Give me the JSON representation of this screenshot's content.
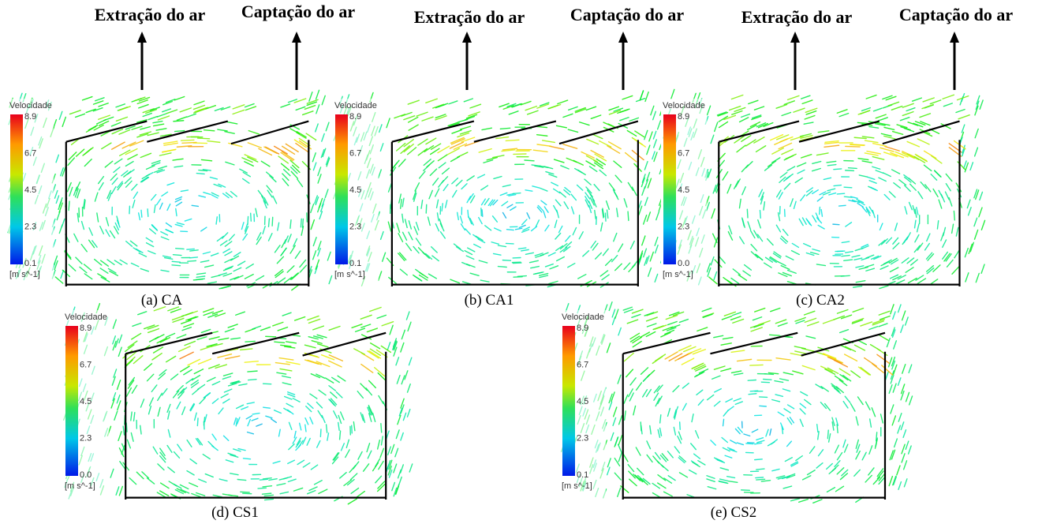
{
  "header_labels": [
    "Extração do ar",
    "Captação do ar",
    "Extração do ar",
    "Captação do ar",
    "Extração do ar",
    "Captação do ar"
  ],
  "panels": [
    {
      "caption": "(a) CA",
      "legend": {
        "title": "Velocidade",
        "ticks": [
          "8.9",
          "6.7",
          "4.5",
          "2.3",
          "0.1"
        ],
        "unit": "[m s^-1]"
      }
    },
    {
      "caption": "(b) CA1",
      "legend": {
        "title": "Velocidade",
        "ticks": [
          "8.9",
          "6.7",
          "4.5",
          "2.3",
          "0.1"
        ],
        "unit": "[m s^-1]"
      }
    },
    {
      "caption": "(c) CA2",
      "legend": {
        "title": "Velocidade",
        "ticks": [
          "8.9",
          "6.7",
          "4.5",
          "2.3",
          "0.0"
        ],
        "unit": "[m s^-1]"
      }
    },
    {
      "caption": "(d) CS1",
      "legend": {
        "title": "Velocidade",
        "ticks": [
          "8.9",
          "6.7",
          "4.5",
          "2.3",
          "0.0"
        ],
        "unit": "[m s^-1]"
      }
    },
    {
      "caption": "(e) CS2",
      "legend": {
        "title": "Velocidade",
        "ticks": [
          "8.9",
          "6.7",
          "4.5",
          "2.3",
          "0.1"
        ],
        "unit": "[m s^-1]"
      }
    }
  ]
}
